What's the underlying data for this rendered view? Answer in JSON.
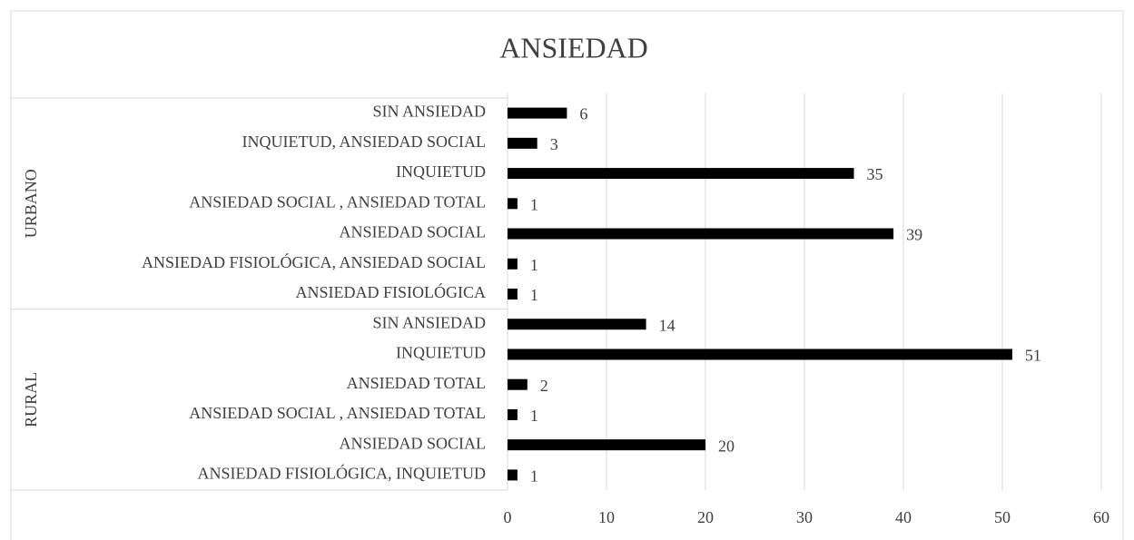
{
  "chart_data": {
    "type": "bar",
    "orientation": "horizontal",
    "title": "ANSIEDAD",
    "color": "#000000",
    "groups": [
      {
        "name": "URBANO",
        "categories": [
          "SIN ANSIEDAD",
          "INQUIETUD, ANSIEDAD SOCIAL",
          "INQUIETUD",
          "ANSIEDAD SOCIAL , ANSIEDAD TOTAL",
          "ANSIEDAD SOCIAL",
          "ANSIEDAD FISIOLÓGICA, ANSIEDAD SOCIAL",
          "ANSIEDAD FISIOLÓGICA"
        ],
        "values": [
          6,
          3,
          35,
          1,
          39,
          1,
          1
        ]
      },
      {
        "name": "RURAL",
        "categories": [
          "SIN ANSIEDAD",
          "INQUIETUD",
          "ANSIEDAD TOTAL",
          "ANSIEDAD SOCIAL , ANSIEDAD TOTAL",
          "ANSIEDAD SOCIAL",
          "ANSIEDAD FISIOLÓGICA, INQUIETUD"
        ],
        "values": [
          14,
          51,
          2,
          1,
          20,
          1
        ]
      }
    ],
    "xlim": [
      0,
      60
    ],
    "xticks": [
      0,
      10,
      20,
      30,
      40,
      50,
      60
    ],
    "grid": true
  }
}
